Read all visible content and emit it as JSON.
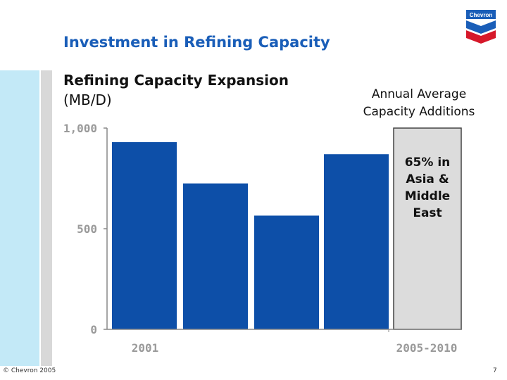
{
  "slide": {
    "title": "Investment in Refining Capacity",
    "chart_heading": "Refining Capacity Expansion",
    "chart_unit": "(MB/D)",
    "annual_heading_line1": "Annual Average",
    "annual_heading_line2": "Capacity Additions",
    "logo_text": "Chevron",
    "copyright": "© Chevron 2005",
    "page_number": "7"
  },
  "chart_data": {
    "type": "bar",
    "title": "Refining Capacity Expansion (MB/D)",
    "ylim": [
      0,
      1000
    ],
    "yticks": [
      0,
      500,
      1000
    ],
    "ytick_labels": [
      "0",
      "500",
      "1,000"
    ],
    "bars": [
      {
        "name": "bar-1",
        "value": 930
      },
      {
        "name": "bar-2",
        "value": 725
      },
      {
        "name": "bar-3",
        "value": 565
      },
      {
        "name": "bar-4",
        "value": 870
      }
    ],
    "x_labels": [
      "2001",
      "2005-2010"
    ],
    "highlight_value": 1000,
    "highlight_text": [
      "65% in",
      "Asia &",
      "Middle",
      "East"
    ],
    "colors": {
      "bar": "#0d4fa8",
      "highlight": "#dcdcdc",
      "axis": "#888888",
      "tick_text": "#9a9a9a"
    }
  }
}
